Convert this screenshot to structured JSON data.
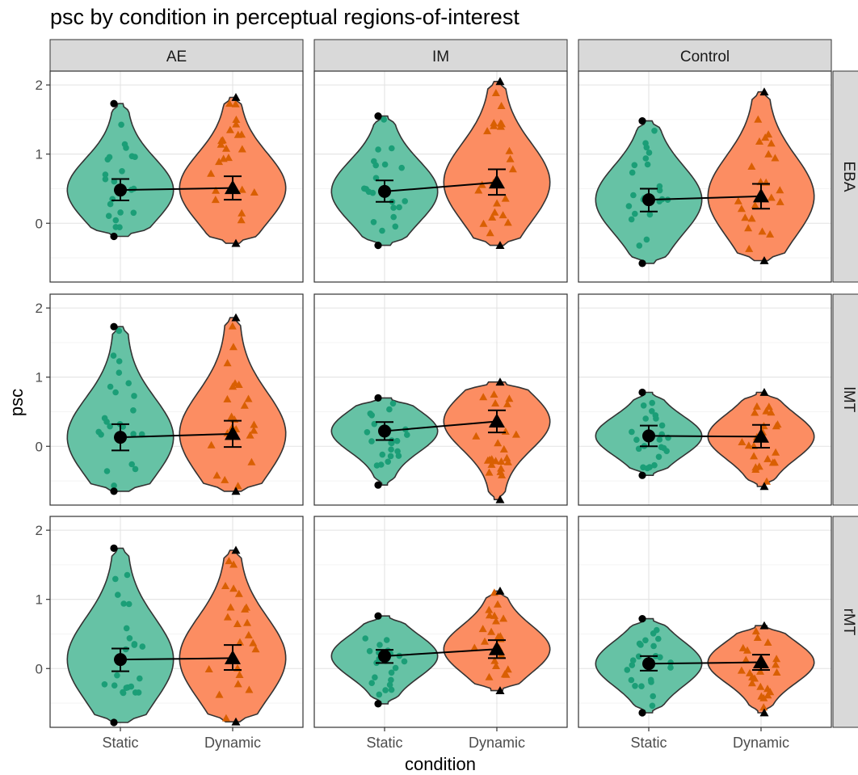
{
  "chart_data": {
    "type": "violin",
    "title": "psc by condition in perceptual regions-of-interest",
    "xlabel": "condition",
    "ylabel": "psc",
    "categories": [
      "Static",
      "Dynamic"
    ],
    "columns": [
      "AE",
      "IM",
      "Control"
    ],
    "rows": [
      "EBA",
      "lMT",
      "rMT"
    ],
    "yticks": [
      0,
      1,
      2
    ],
    "ylim": [
      -0.85,
      2.2
    ],
    "grid": true,
    "legend": "none",
    "colors": {
      "Static": "#66c2a5",
      "Dynamic": "#fc8d62",
      "Static_points": "#1b9e77",
      "Dynamic_points": "#d95f02",
      "summary": "#000000"
    },
    "panels": [
      {
        "column": "AE",
        "row": "EBA",
        "Static": {
          "mean": 0.48,
          "ci": [
            0.33,
            0.64
          ],
          "min": -0.19,
          "max": 1.73
        },
        "Dynamic": {
          "mean": 0.51,
          "ci": [
            0.34,
            0.68
          ],
          "min": -0.29,
          "max": 1.82
        }
      },
      {
        "column": "IM",
        "row": "EBA",
        "Static": {
          "mean": 0.46,
          "ci": [
            0.31,
            0.62
          ],
          "min": -0.32,
          "max": 1.55
        },
        "Dynamic": {
          "mean": 0.59,
          "ci": [
            0.41,
            0.78
          ],
          "min": -0.32,
          "max": 2.05
        }
      },
      {
        "column": "Control",
        "row": "EBA",
        "Static": {
          "mean": 0.34,
          "ci": [
            0.17,
            0.5
          ],
          "min": -0.58,
          "max": 1.48
        },
        "Dynamic": {
          "mean": 0.39,
          "ci": [
            0.21,
            0.57
          ],
          "min": -0.54,
          "max": 1.9
        }
      },
      {
        "column": "AE",
        "row": "lMT",
        "Static": {
          "mean": 0.13,
          "ci": [
            -0.06,
            0.32
          ],
          "min": -0.65,
          "max": 1.73
        },
        "Dynamic": {
          "mean": 0.18,
          "ci": [
            -0.01,
            0.37
          ],
          "min": -0.65,
          "max": 1.86
        }
      },
      {
        "column": "IM",
        "row": "lMT",
        "Static": {
          "mean": 0.22,
          "ci": [
            0.09,
            0.35
          ],
          "min": -0.56,
          "max": 0.7
        },
        "Dynamic": {
          "mean": 0.36,
          "ci": [
            0.2,
            0.52
          ],
          "min": -0.77,
          "max": 0.93
        }
      },
      {
        "column": "Control",
        "row": "lMT",
        "Static": {
          "mean": 0.15,
          "ci": [
            0.0,
            0.3
          ],
          "min": -0.42,
          "max": 0.78
        },
        "Dynamic": {
          "mean": 0.14,
          "ci": [
            -0.02,
            0.31
          ],
          "min": -0.58,
          "max": 0.78
        }
      },
      {
        "column": "AE",
        "row": "rMT",
        "Static": {
          "mean": 0.13,
          "ci": [
            -0.04,
            0.29
          ],
          "min": -0.78,
          "max": 1.74
        },
        "Dynamic": {
          "mean": 0.15,
          "ci": [
            -0.02,
            0.34
          ],
          "min": -0.77,
          "max": 1.71
        }
      },
      {
        "column": "IM",
        "row": "rMT",
        "Static": {
          "mean": 0.18,
          "ci": [
            0.08,
            0.27
          ],
          "min": -0.51,
          "max": 0.76
        },
        "Dynamic": {
          "mean": 0.28,
          "ci": [
            0.15,
            0.41
          ],
          "min": -0.32,
          "max": 1.12
        }
      },
      {
        "column": "Control",
        "row": "rMT",
        "Static": {
          "mean": 0.07,
          "ci": [
            -0.03,
            0.18
          ],
          "min": -0.64,
          "max": 0.72
        },
        "Dynamic": {
          "mean": 0.09,
          "ci": [
            -0.02,
            0.2
          ],
          "min": -0.64,
          "max": 0.62
        }
      }
    ]
  }
}
